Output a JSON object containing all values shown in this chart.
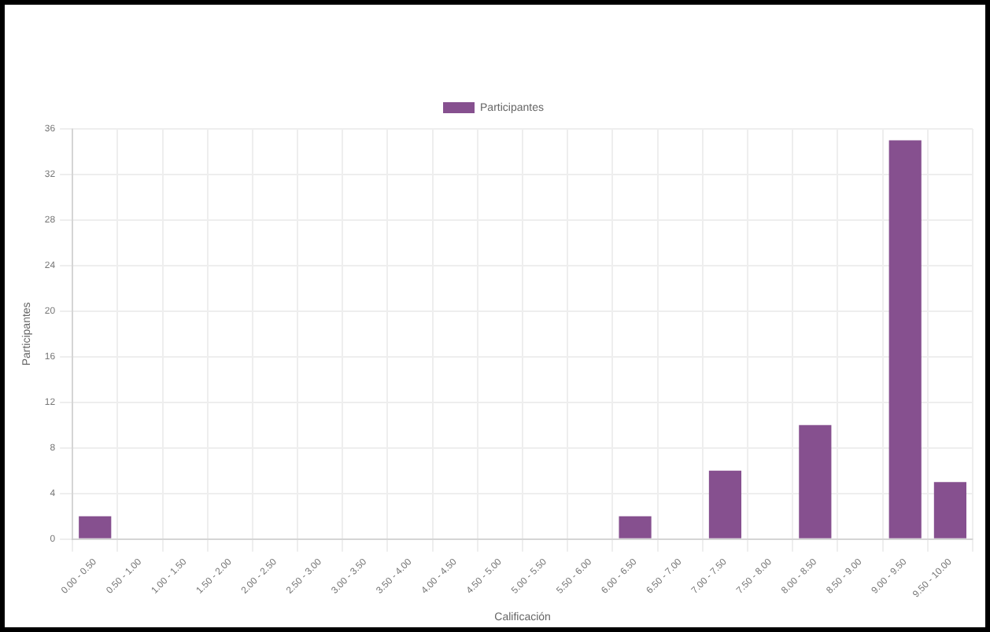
{
  "chart_data": {
    "type": "bar",
    "xlabel": "Calificación",
    "ylabel": "Participantes",
    "categories": [
      "0.00 - 0.50",
      "0.50 - 1.00",
      "1.00 - 1.50",
      "1.50 - 2.00",
      "2.00 - 2.50",
      "2.50 - 3.00",
      "3.00 - 3.50",
      "3.50 - 4.00",
      "4.00 - 4.50",
      "4.50 - 5.00",
      "5.00 - 5.50",
      "5.50 - 6.00",
      "6.00 - 6.50",
      "6.50 - 7.00",
      "7.00 - 7.50",
      "7.50 - 8.00",
      "8.00 - 8.50",
      "8.50 - 9.00",
      "9.00 - 9.50",
      "9.50 - 10.00"
    ],
    "series": [
      {
        "name": "Participantes",
        "color": "#86508f",
        "values": [
          2,
          0,
          0,
          0,
          0,
          0,
          0,
          0,
          0,
          0,
          0,
          0,
          2,
          0,
          6,
          0,
          10,
          0,
          35,
          5
        ]
      }
    ],
    "ylim": [
      0,
      36
    ],
    "yticks": [
      0,
      4,
      8,
      12,
      16,
      20,
      24,
      28,
      32,
      36
    ],
    "grid": true,
    "legend": "top"
  }
}
